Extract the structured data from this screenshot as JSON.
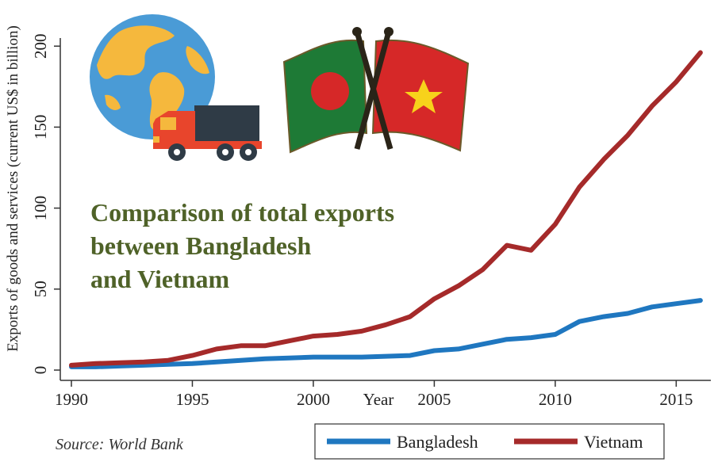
{
  "chart_data": {
    "type": "line",
    "title_lines": [
      "Comparison of total exports",
      "between Bangladesh",
      "and Vietnam"
    ],
    "xlabel": "Year",
    "ylabel": "Exports of goods and services (current US$ in billion)",
    "xlim": [
      1990,
      2016.3
    ],
    "ylim": [
      0,
      205
    ],
    "x_ticks": [
      1990,
      1995,
      2000,
      2005,
      2010,
      2015
    ],
    "y_ticks": [
      0,
      50,
      100,
      150,
      200
    ],
    "source": "Source: World Bank",
    "legend_position": "bottom-right",
    "series": [
      {
        "name": "Bangladesh",
        "color": "#1f77c0",
        "x": [
          1990,
          1991,
          1992,
          1993,
          1994,
          1995,
          1996,
          1997,
          1998,
          1999,
          2000,
          2001,
          2002,
          2003,
          2004,
          2005,
          2006,
          2007,
          2008,
          2009,
          2010,
          2011,
          2012,
          2013,
          2014,
          2015,
          2016
        ],
        "y": [
          2,
          2,
          2.5,
          3,
          3.5,
          4,
          5,
          6,
          7,
          7.5,
          8,
          8,
          8,
          8.5,
          9,
          12,
          13,
          16,
          19,
          20,
          22,
          30,
          33,
          35,
          39,
          41,
          43
        ]
      },
      {
        "name": "Vietnam",
        "color": "#a52a2a",
        "x": [
          1990,
          1991,
          1992,
          1993,
          1994,
          1995,
          1996,
          1997,
          1998,
          1999,
          2000,
          2001,
          2002,
          2003,
          2004,
          2005,
          2006,
          2007,
          2008,
          2009,
          2010,
          2011,
          2012,
          2013,
          2014,
          2015,
          2016
        ],
        "y": [
          3,
          4,
          4.5,
          5,
          6,
          9,
          13,
          15,
          15,
          18,
          21,
          22,
          24,
          28,
          33,
          44,
          52,
          62,
          77,
          74,
          90,
          113,
          130,
          145,
          163,
          178,
          196
        ]
      }
    ]
  },
  "decor": {
    "globe_icon": "globe-icon",
    "truck_icon": "truck-icon",
    "flags_icon": "crossed-flags-icon",
    "colors": {
      "ocean": "#4a9bd6",
      "land": "#f5b83d",
      "truck_cab": "#e8452c",
      "truck_box": "#2f3b46",
      "flag_green": "#1e7a36",
      "flag_red": "#d62828",
      "star": "#f7d21b"
    }
  }
}
